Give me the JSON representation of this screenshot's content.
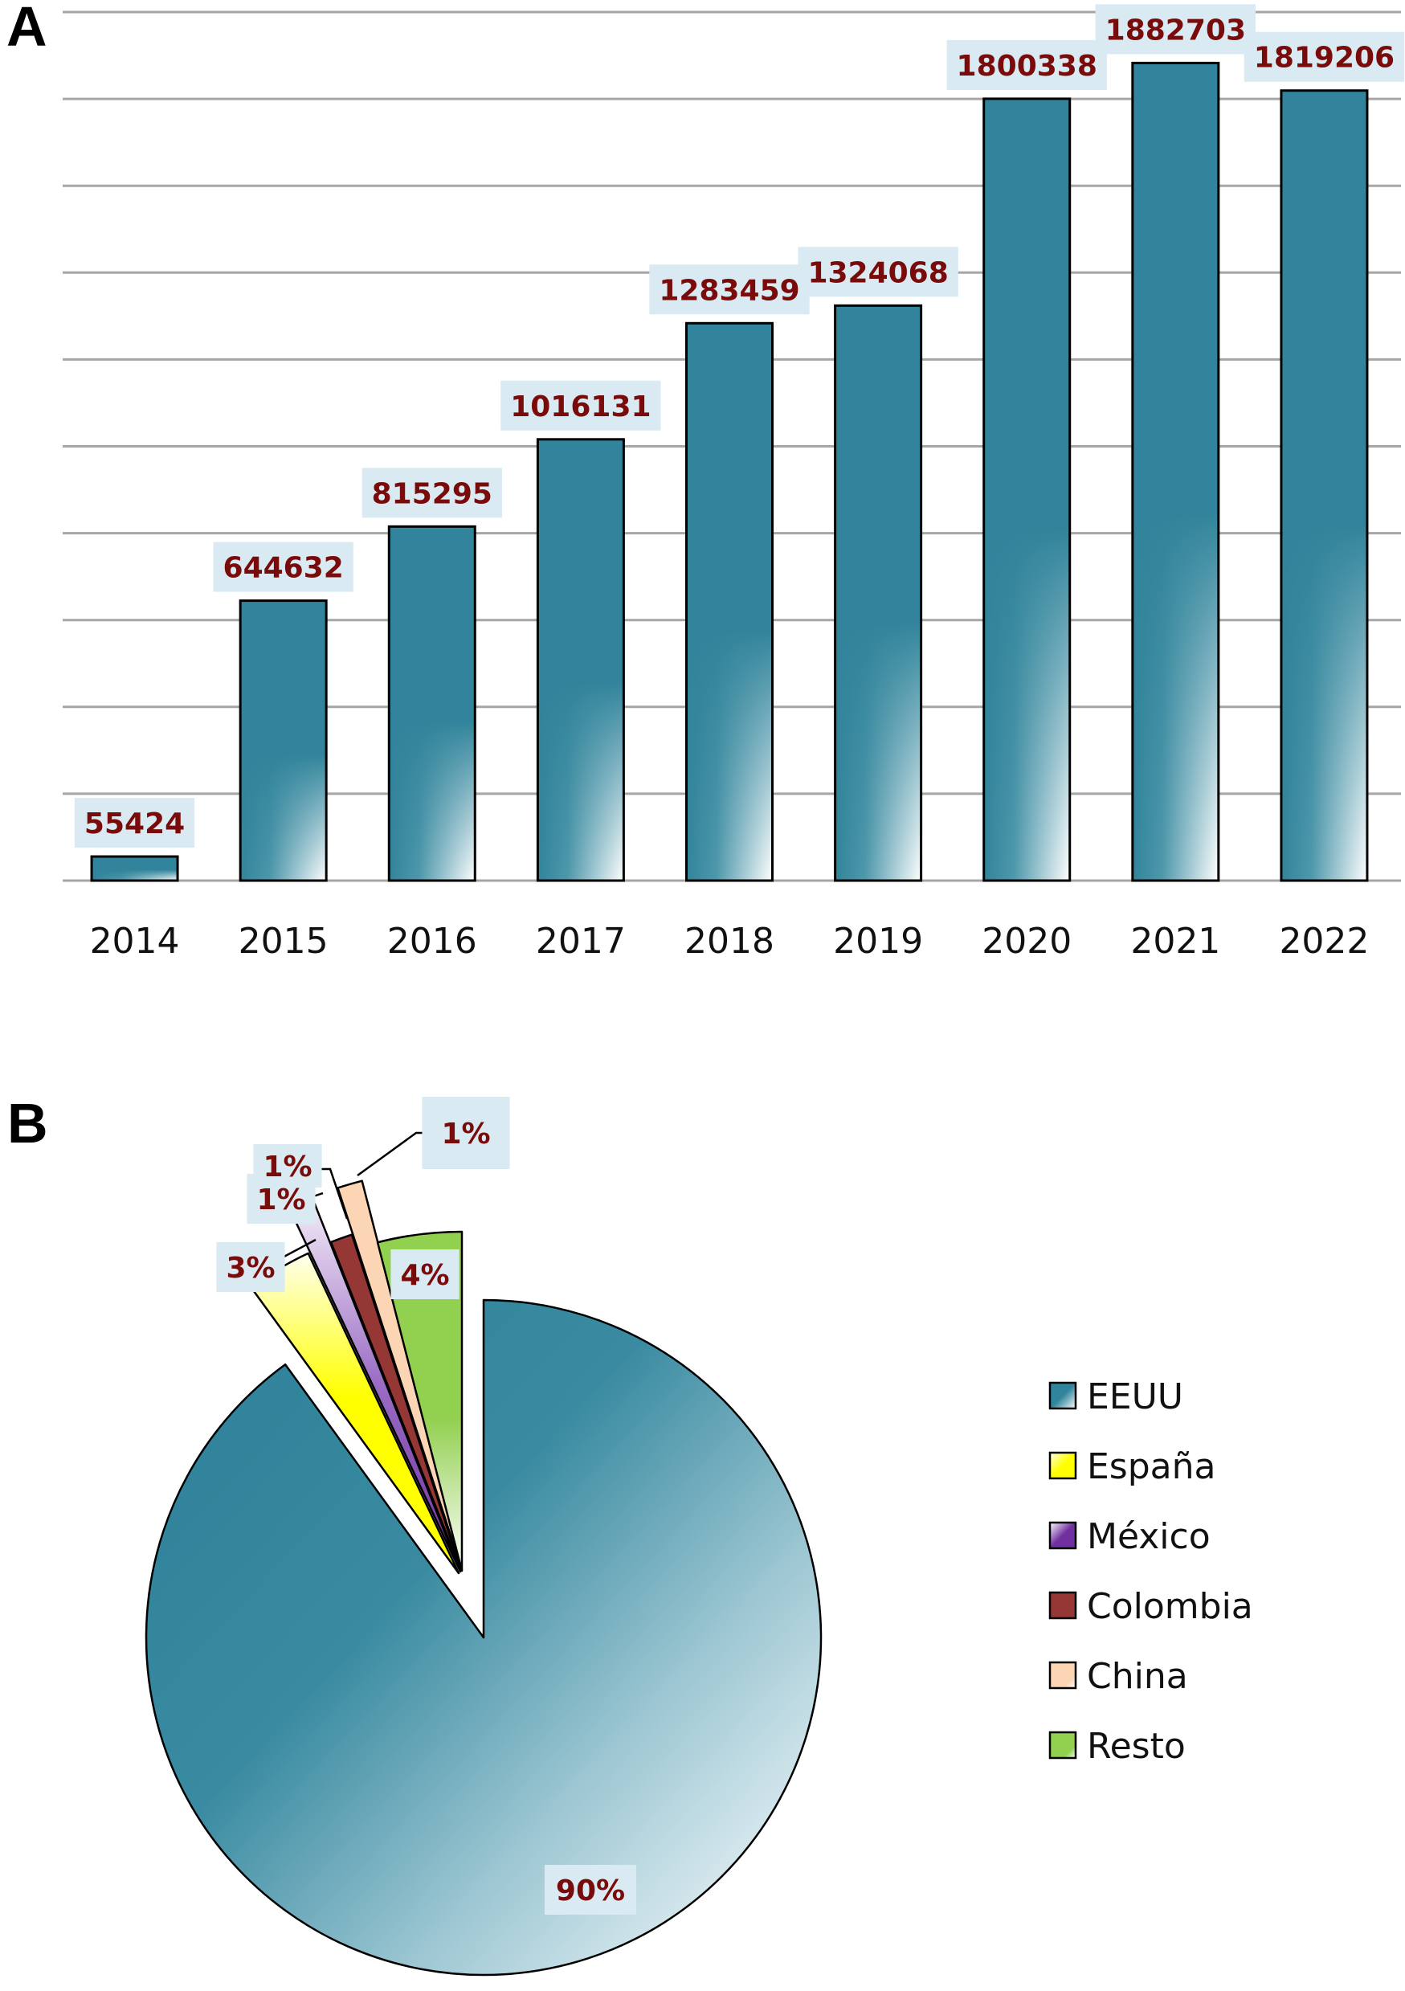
{
  "panels": {
    "a_letter": "A",
    "b_letter": "B"
  },
  "chart_data": [
    {
      "type": "bar",
      "panel": "A",
      "title": "",
      "xlabel": "",
      "ylabel": "",
      "categories": [
        "2014",
        "2015",
        "2016",
        "2017",
        "2018",
        "2019",
        "2020",
        "2021",
        "2022"
      ],
      "values": [
        55424,
        644632,
        815295,
        1016131,
        1283459,
        1324068,
        1800338,
        1882703,
        1819206
      ],
      "data_labels": [
        "55424",
        "644632",
        "815295",
        "1016131",
        "1283459",
        "1324068",
        "1800338",
        "1882703",
        "1819206"
      ],
      "ylim": [
        0,
        2000000
      ],
      "y_gridline_step": 200000,
      "y_tick_labels_shown": false,
      "grid": true,
      "bar_color": "#31849b",
      "label_color": "#7a0b0b",
      "label_box_color": "#daeaf2"
    },
    {
      "type": "pie",
      "panel": "B",
      "title": "",
      "labels": [
        "EEUU",
        "España",
        "México",
        "Colombia",
        "China",
        "Resto"
      ],
      "values": [
        90,
        3,
        1,
        1,
        1,
        4
      ],
      "data_labels": [
        "90%",
        "3%",
        "1%",
        "1%",
        "1%",
        "4%"
      ],
      "unit": "%",
      "exploded": [
        "España",
        "México",
        "Colombia",
        "China",
        "Resto"
      ],
      "colors": [
        "#31849b",
        "#ffff00",
        "#7030a0",
        "#953735",
        "#fcd5b5",
        "#92d050"
      ],
      "legend_position": "right",
      "label_color": "#7a0b0b",
      "label_box_color": "#daeaf2"
    }
  ]
}
